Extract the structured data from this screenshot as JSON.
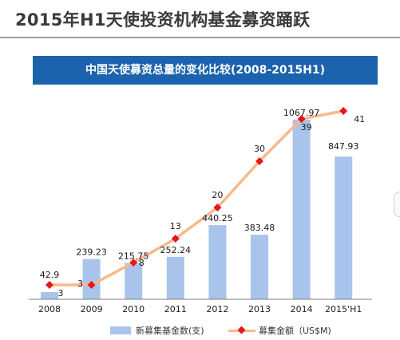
{
  "page": {
    "title": "2015年H1天使投资机构基金募资踊跃"
  },
  "chart_data": {
    "type": "bar",
    "title": "中国天使募资总量的变化比较(2008-2015H1)",
    "categories": [
      "2008",
      "2009",
      "2010",
      "2011",
      "2012",
      "2013",
      "2014",
      "2015'H1"
    ],
    "series": [
      {
        "name": "新募集基金数(支)",
        "type": "bar",
        "values": [
          3,
          3,
          8,
          13,
          20,
          30,
          39,
          41
        ],
        "color": "#a9c4eb"
      },
      {
        "name": "募集金额（US$M)",
        "type": "line",
        "values": [
          42.9,
          239.23,
          215.75,
          252.24,
          440.25,
          383.48,
          1067.97,
          847.93
        ],
        "color": "#f7b98c",
        "marker_color": "#e8141c"
      }
    ],
    "xlabel": "",
    "ylabel": "",
    "grid": false,
    "legend": "bottom"
  }
}
